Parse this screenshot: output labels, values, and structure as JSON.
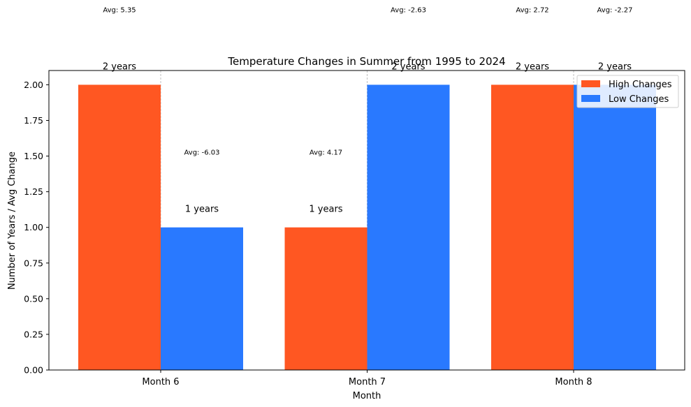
{
  "chart_data": {
    "type": "bar",
    "title": "Temperature Changes in Summer from 1995 to 2024",
    "xlabel": "Month",
    "ylabel": "Number of Years / Avg Change",
    "categories": [
      "Month 6",
      "Month 7",
      "Month 8"
    ],
    "ylim": [
      0,
      2.1
    ],
    "yticks": [
      "0.00",
      "0.25",
      "0.50",
      "0.75",
      "1.00",
      "1.25",
      "1.50",
      "1.75",
      "2.00"
    ],
    "legend_position": "top-right",
    "grid": "vertical dashed at category centers",
    "series": [
      {
        "name": "High Changes",
        "color": "#ff5722",
        "values": [
          2,
          1,
          2
        ],
        "count_labels": [
          "2 years",
          "1 years",
          "2 years"
        ],
        "avg_labels": [
          "Avg: 5.35",
          "Avg: 4.17",
          "Avg: 2.72"
        ]
      },
      {
        "name": "Low Changes",
        "color": "#2979ff",
        "values": [
          1,
          2,
          2
        ],
        "count_labels": [
          "1 years",
          "2 years",
          "2 years"
        ],
        "avg_labels": [
          "Avg: -6.03",
          "Avg: -2.63",
          "Avg: -2.27"
        ]
      }
    ]
  }
}
